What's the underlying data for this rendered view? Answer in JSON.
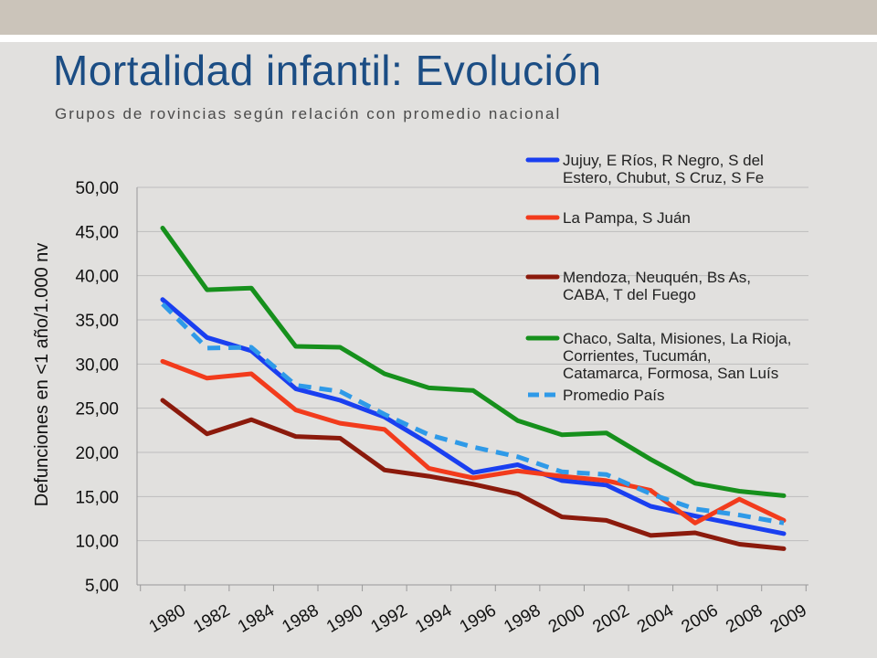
{
  "slide": {
    "title": "Mortalidad infantil: Evolución",
    "subtitle": "Grupos de rovincias según relación con promedio nacional"
  },
  "chart_data": {
    "type": "line",
    "title": "",
    "xlabel": "",
    "ylabel": "Defunciones en <1 año/1.000 nv",
    "ylim": [
      5,
      50
    ],
    "yticks": [
      "5,00",
      "10,00",
      "15,00",
      "20,00",
      "25,00",
      "30,00",
      "35,00",
      "40,00",
      "45,00",
      "50,00"
    ],
    "ytick_values": [
      5,
      10,
      15,
      20,
      25,
      30,
      35,
      40,
      45,
      50
    ],
    "categories": [
      "1980",
      "1982",
      "1984",
      "1988",
      "1990",
      "1992",
      "1994",
      "1996",
      "1998",
      "2000",
      "2002",
      "2004",
      "2006",
      "2008",
      "2009"
    ],
    "grid": true,
    "legend_position": "top-right",
    "series": [
      {
        "name_lines": [
          "Jujuy, E Ríos, R Negro, S del",
          "Estero, Chubut, S Cruz, S Fe"
        ],
        "color": "#1a3ff0",
        "dashed": false,
        "values": [
          37.3,
          33.0,
          31.5,
          27.2,
          25.9,
          24.0,
          21.0,
          17.7,
          18.6,
          16.8,
          16.3,
          13.9,
          12.8,
          11.8,
          10.8
        ]
      },
      {
        "name_lines": [
          "La Pampa, S Juán"
        ],
        "color": "#f23b1c",
        "dashed": false,
        "values": [
          30.3,
          28.4,
          28.9,
          24.8,
          23.3,
          22.6,
          18.2,
          17.1,
          17.9,
          17.3,
          16.8,
          15.7,
          12.0,
          14.7,
          12.3
        ]
      },
      {
        "name_lines": [
          "Mendoza, Neuquén, Bs As,",
          "CABA, T del Fuego"
        ],
        "color": "#8b1a0c",
        "dashed": false,
        "values": [
          25.9,
          22.1,
          23.7,
          21.8,
          21.6,
          18.0,
          17.3,
          16.4,
          15.3,
          12.7,
          12.3,
          10.6,
          10.9,
          9.6,
          9.1
        ]
      },
      {
        "name_lines": [
          "Chaco, Salta, Misiones, La Rioja,",
          "Corrientes, Tucumán,",
          "Catamarca, Formosa, San Luís"
        ],
        "color": "#16901c",
        "dashed": false,
        "values": [
          45.4,
          38.4,
          38.6,
          32.0,
          31.9,
          28.9,
          27.3,
          27.0,
          23.6,
          22.0,
          22.2,
          19.2,
          16.5,
          15.6,
          15.1
        ]
      },
      {
        "name_lines": [
          "Promedio País"
        ],
        "color": "#2f9ae8",
        "dashed": true,
        "values": [
          36.8,
          31.8,
          31.9,
          27.6,
          26.9,
          24.3,
          22.0,
          20.6,
          19.5,
          17.8,
          17.5,
          15.3,
          13.6,
          12.9,
          12.0
        ]
      }
    ]
  }
}
